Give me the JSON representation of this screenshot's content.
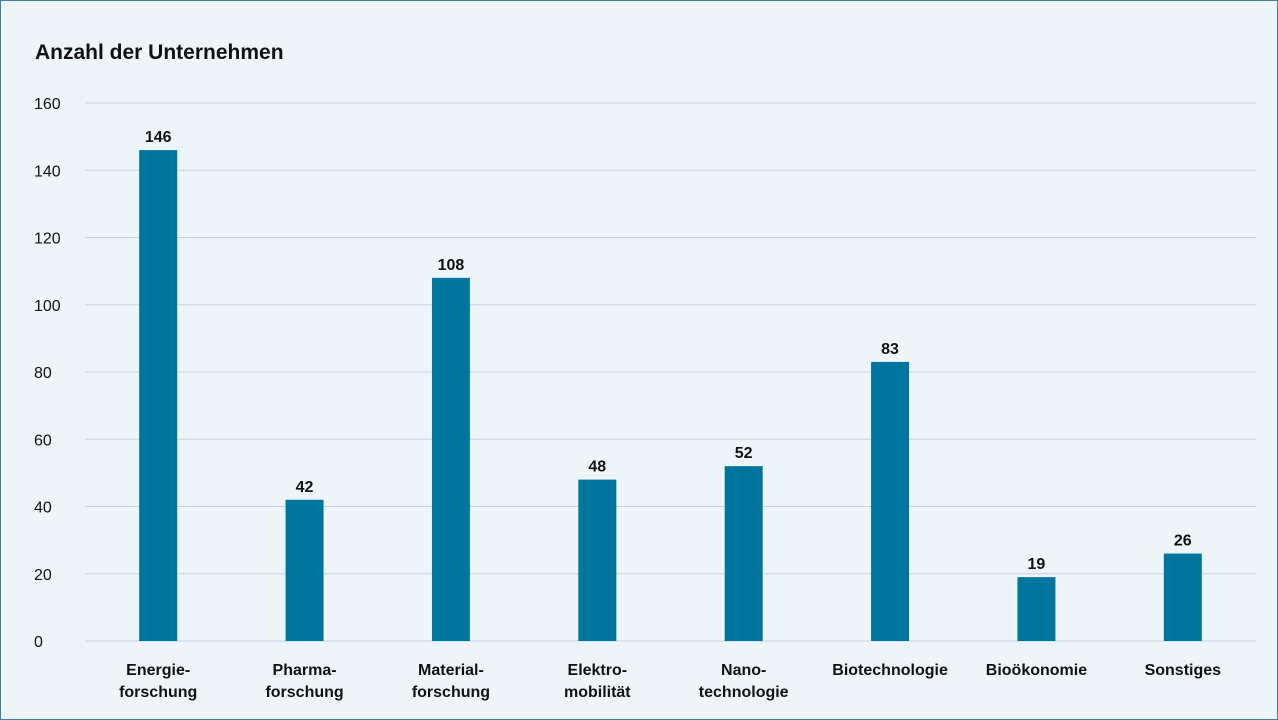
{
  "chart_data": {
    "type": "bar",
    "title": "Anzahl der Unternehmen",
    "categories": [
      [
        "Energie-",
        "forschung"
      ],
      [
        "Pharma-",
        "forschung"
      ],
      [
        "Material-",
        "forschung"
      ],
      [
        "Elektro-",
        "mobilität"
      ],
      [
        "Nano-",
        "technologie"
      ],
      [
        "Biotechnologie"
      ],
      [
        "Bioökonomie"
      ],
      [
        "Sonstiges"
      ]
    ],
    "values": [
      146,
      42,
      108,
      48,
      52,
      83,
      19,
      26
    ],
    "ylim": [
      0,
      160
    ],
    "yticks": [
      0,
      20,
      40,
      60,
      80,
      100,
      120,
      140,
      160
    ],
    "grid": true,
    "bar_color": "#00769e",
    "grid_color": "#c5d3dc"
  }
}
